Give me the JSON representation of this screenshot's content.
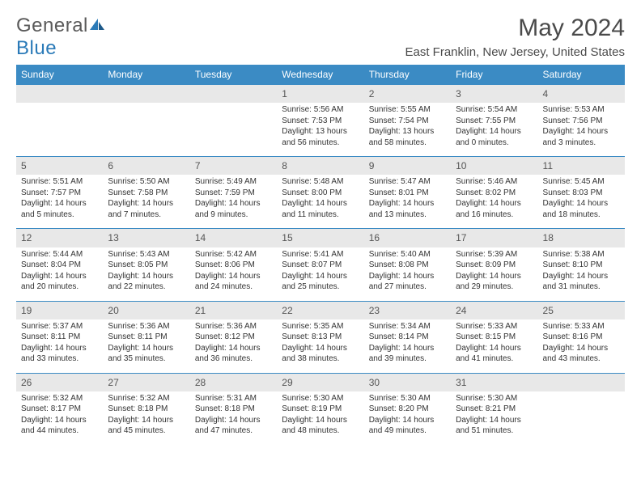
{
  "logo": {
    "text1": "General",
    "text2": "Blue"
  },
  "title": "May 2024",
  "location": "East Franklin, New Jersey, United States",
  "colors": {
    "header_bg": "#3b8bc4",
    "header_fg": "#ffffff",
    "daynum_bg": "#e8e8e8",
    "rule": "#3b8bc4"
  },
  "weekdays": [
    "Sunday",
    "Monday",
    "Tuesday",
    "Wednesday",
    "Thursday",
    "Friday",
    "Saturday"
  ],
  "weeks": [
    [
      null,
      null,
      null,
      {
        "n": "1",
        "sr": "Sunrise: 5:56 AM",
        "ss": "Sunset: 7:53 PM",
        "dl": "Daylight: 13 hours and 56 minutes."
      },
      {
        "n": "2",
        "sr": "Sunrise: 5:55 AM",
        "ss": "Sunset: 7:54 PM",
        "dl": "Daylight: 13 hours and 58 minutes."
      },
      {
        "n": "3",
        "sr": "Sunrise: 5:54 AM",
        "ss": "Sunset: 7:55 PM",
        "dl": "Daylight: 14 hours and 0 minutes."
      },
      {
        "n": "4",
        "sr": "Sunrise: 5:53 AM",
        "ss": "Sunset: 7:56 PM",
        "dl": "Daylight: 14 hours and 3 minutes."
      }
    ],
    [
      {
        "n": "5",
        "sr": "Sunrise: 5:51 AM",
        "ss": "Sunset: 7:57 PM",
        "dl": "Daylight: 14 hours and 5 minutes."
      },
      {
        "n": "6",
        "sr": "Sunrise: 5:50 AM",
        "ss": "Sunset: 7:58 PM",
        "dl": "Daylight: 14 hours and 7 minutes."
      },
      {
        "n": "7",
        "sr": "Sunrise: 5:49 AM",
        "ss": "Sunset: 7:59 PM",
        "dl": "Daylight: 14 hours and 9 minutes."
      },
      {
        "n": "8",
        "sr": "Sunrise: 5:48 AM",
        "ss": "Sunset: 8:00 PM",
        "dl": "Daylight: 14 hours and 11 minutes."
      },
      {
        "n": "9",
        "sr": "Sunrise: 5:47 AM",
        "ss": "Sunset: 8:01 PM",
        "dl": "Daylight: 14 hours and 13 minutes."
      },
      {
        "n": "10",
        "sr": "Sunrise: 5:46 AM",
        "ss": "Sunset: 8:02 PM",
        "dl": "Daylight: 14 hours and 16 minutes."
      },
      {
        "n": "11",
        "sr": "Sunrise: 5:45 AM",
        "ss": "Sunset: 8:03 PM",
        "dl": "Daylight: 14 hours and 18 minutes."
      }
    ],
    [
      {
        "n": "12",
        "sr": "Sunrise: 5:44 AM",
        "ss": "Sunset: 8:04 PM",
        "dl": "Daylight: 14 hours and 20 minutes."
      },
      {
        "n": "13",
        "sr": "Sunrise: 5:43 AM",
        "ss": "Sunset: 8:05 PM",
        "dl": "Daylight: 14 hours and 22 minutes."
      },
      {
        "n": "14",
        "sr": "Sunrise: 5:42 AM",
        "ss": "Sunset: 8:06 PM",
        "dl": "Daylight: 14 hours and 24 minutes."
      },
      {
        "n": "15",
        "sr": "Sunrise: 5:41 AM",
        "ss": "Sunset: 8:07 PM",
        "dl": "Daylight: 14 hours and 25 minutes."
      },
      {
        "n": "16",
        "sr": "Sunrise: 5:40 AM",
        "ss": "Sunset: 8:08 PM",
        "dl": "Daylight: 14 hours and 27 minutes."
      },
      {
        "n": "17",
        "sr": "Sunrise: 5:39 AM",
        "ss": "Sunset: 8:09 PM",
        "dl": "Daylight: 14 hours and 29 minutes."
      },
      {
        "n": "18",
        "sr": "Sunrise: 5:38 AM",
        "ss": "Sunset: 8:10 PM",
        "dl": "Daylight: 14 hours and 31 minutes."
      }
    ],
    [
      {
        "n": "19",
        "sr": "Sunrise: 5:37 AM",
        "ss": "Sunset: 8:11 PM",
        "dl": "Daylight: 14 hours and 33 minutes."
      },
      {
        "n": "20",
        "sr": "Sunrise: 5:36 AM",
        "ss": "Sunset: 8:11 PM",
        "dl": "Daylight: 14 hours and 35 minutes."
      },
      {
        "n": "21",
        "sr": "Sunrise: 5:36 AM",
        "ss": "Sunset: 8:12 PM",
        "dl": "Daylight: 14 hours and 36 minutes."
      },
      {
        "n": "22",
        "sr": "Sunrise: 5:35 AM",
        "ss": "Sunset: 8:13 PM",
        "dl": "Daylight: 14 hours and 38 minutes."
      },
      {
        "n": "23",
        "sr": "Sunrise: 5:34 AM",
        "ss": "Sunset: 8:14 PM",
        "dl": "Daylight: 14 hours and 39 minutes."
      },
      {
        "n": "24",
        "sr": "Sunrise: 5:33 AM",
        "ss": "Sunset: 8:15 PM",
        "dl": "Daylight: 14 hours and 41 minutes."
      },
      {
        "n": "25",
        "sr": "Sunrise: 5:33 AM",
        "ss": "Sunset: 8:16 PM",
        "dl": "Daylight: 14 hours and 43 minutes."
      }
    ],
    [
      {
        "n": "26",
        "sr": "Sunrise: 5:32 AM",
        "ss": "Sunset: 8:17 PM",
        "dl": "Daylight: 14 hours and 44 minutes."
      },
      {
        "n": "27",
        "sr": "Sunrise: 5:32 AM",
        "ss": "Sunset: 8:18 PM",
        "dl": "Daylight: 14 hours and 45 minutes."
      },
      {
        "n": "28",
        "sr": "Sunrise: 5:31 AM",
        "ss": "Sunset: 8:18 PM",
        "dl": "Daylight: 14 hours and 47 minutes."
      },
      {
        "n": "29",
        "sr": "Sunrise: 5:30 AM",
        "ss": "Sunset: 8:19 PM",
        "dl": "Daylight: 14 hours and 48 minutes."
      },
      {
        "n": "30",
        "sr": "Sunrise: 5:30 AM",
        "ss": "Sunset: 8:20 PM",
        "dl": "Daylight: 14 hours and 49 minutes."
      },
      {
        "n": "31",
        "sr": "Sunrise: 5:30 AM",
        "ss": "Sunset: 8:21 PM",
        "dl": "Daylight: 14 hours and 51 minutes."
      },
      null
    ]
  ]
}
